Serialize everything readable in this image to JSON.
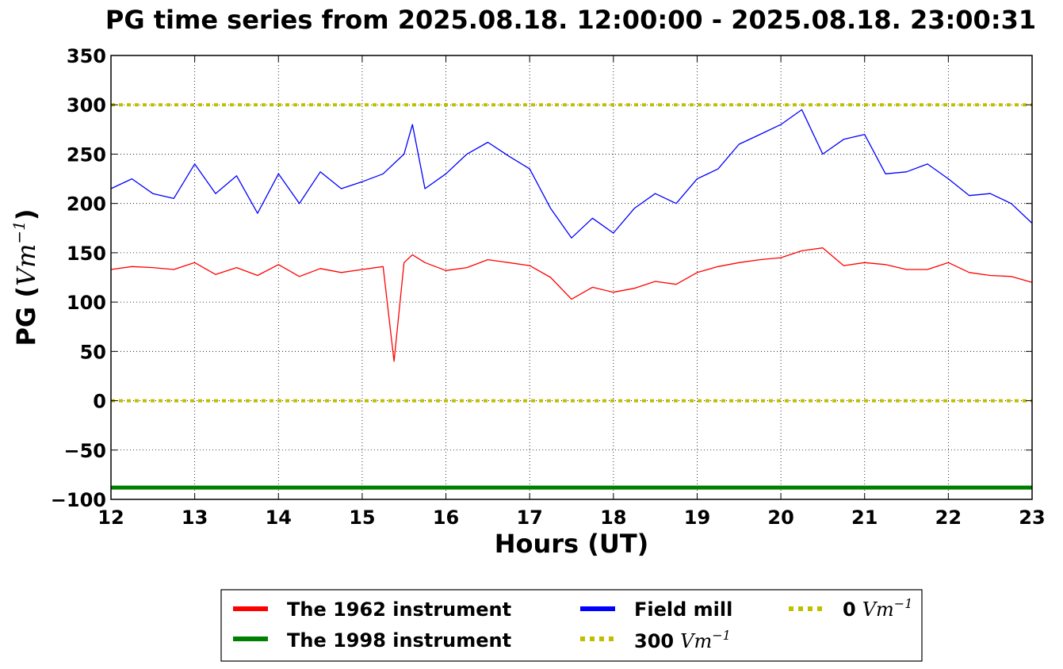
{
  "chart_data": {
    "type": "line",
    "title": "PG time series from 2025.08.18. 12:00:00 - 2025.08.18. 23:00:31",
    "xlabel": "Hours (UT)",
    "ylabel_prefix": "PG (",
    "ylabel_unit": "Vm",
    "ylabel_exp": "−1",
    "ylabel_suffix": ")",
    "xlim": [
      12,
      23
    ],
    "ylim": [
      -100,
      350
    ],
    "xticks": [
      "12",
      "13",
      "14",
      "15",
      "16",
      "17",
      "18",
      "19",
      "20",
      "21",
      "22",
      "23"
    ],
    "yticks": [
      "350",
      "300",
      "250",
      "200",
      "150",
      "100",
      "50",
      "0",
      "−50",
      "−100"
    ],
    "grid": true,
    "legend_position": "bottom-center",
    "series": [
      {
        "name": "The 1962 instrument",
        "color": "#ff0000",
        "x": [
          12.0,
          12.25,
          12.5,
          12.75,
          13.0,
          13.25,
          13.5,
          13.75,
          14.0,
          14.25,
          14.5,
          14.75,
          15.0,
          15.25,
          15.38,
          15.5,
          15.6,
          15.75,
          16.0,
          16.25,
          16.5,
          16.75,
          17.0,
          17.25,
          17.5,
          17.75,
          18.0,
          18.25,
          18.5,
          18.75,
          19.0,
          19.25,
          19.5,
          19.75,
          20.0,
          20.25,
          20.5,
          20.75,
          21.0,
          21.25,
          21.5,
          21.75,
          22.0,
          22.25,
          22.5,
          22.75,
          23.0
        ],
        "y": [
          133,
          136,
          135,
          133,
          140,
          128,
          135,
          127,
          138,
          126,
          134,
          130,
          133,
          136,
          40,
          140,
          148,
          140,
          132,
          135,
          143,
          140,
          137,
          125,
          103,
          115,
          110,
          114,
          121,
          118,
          130,
          136,
          140,
          143,
          145,
          152,
          155,
          137,
          140,
          138,
          133,
          133,
          140,
          130,
          127,
          126,
          120
        ]
      },
      {
        "name": "The 1998 instrument",
        "color": "#008000",
        "x": [
          12.0,
          23.0
        ],
        "y": [
          -88,
          -88
        ]
      },
      {
        "name": "Field mill",
        "color": "#0000ff",
        "x": [
          12.0,
          12.25,
          12.5,
          12.75,
          13.0,
          13.25,
          13.5,
          13.75,
          14.0,
          14.25,
          14.5,
          14.75,
          15.0,
          15.25,
          15.5,
          15.6,
          15.75,
          16.0,
          16.25,
          16.5,
          16.75,
          17.0,
          17.25,
          17.5,
          17.75,
          18.0,
          18.25,
          18.5,
          18.75,
          19.0,
          19.25,
          19.5,
          19.75,
          20.0,
          20.25,
          20.5,
          20.75,
          21.0,
          21.25,
          21.5,
          21.75,
          22.0,
          22.25,
          22.5,
          22.75,
          23.0
        ],
        "y": [
          215,
          225,
          210,
          205,
          240,
          210,
          228,
          190,
          230,
          200,
          232,
          215,
          222,
          230,
          250,
          280,
          215,
          230,
          250,
          262,
          248,
          235,
          195,
          165,
          185,
          170,
          195,
          210,
          200,
          225,
          235,
          260,
          270,
          280,
          295,
          250,
          265,
          270,
          230,
          232,
          240,
          225,
          208,
          210,
          200,
          180
        ]
      },
      {
        "name": "300",
        "name_unit": "Vm",
        "name_exp": "−1",
        "color": "#bfbf00",
        "x": [
          12.0,
          23.0
        ],
        "y": [
          300,
          300
        ]
      },
      {
        "name": "0",
        "name_unit": "Vm",
        "name_exp": "−1",
        "color": "#bfbf00",
        "x": [
          12.0,
          23.0
        ],
        "y": [
          0,
          0
        ]
      }
    ]
  }
}
